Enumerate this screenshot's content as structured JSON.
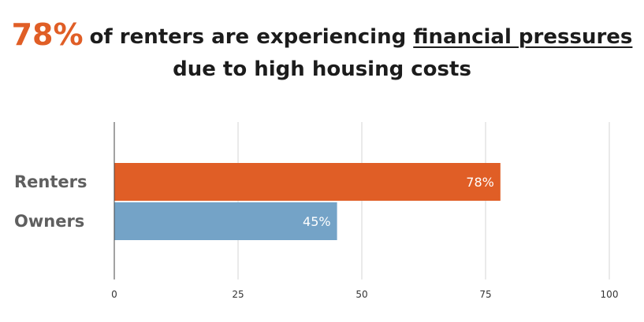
{
  "headline": {
    "highlight": "78%",
    "line1_text": "of renters are experiencing",
    "underlined_text": "financial pressures",
    "line2_text": "due to high housing costs",
    "highlight_color": "#e05e26"
  },
  "chart_data": {
    "type": "bar",
    "orientation": "horizontal",
    "categories": [
      "Renters",
      "Owners"
    ],
    "values": [
      78,
      45
    ],
    "data_labels": [
      "78%",
      "45%"
    ],
    "colors": [
      "#e05e26",
      "#74a3c7"
    ],
    "xlim": [
      0,
      100
    ],
    "x_ticks": [
      0,
      25,
      50,
      75,
      100
    ],
    "grid": true,
    "legend": "none"
  }
}
